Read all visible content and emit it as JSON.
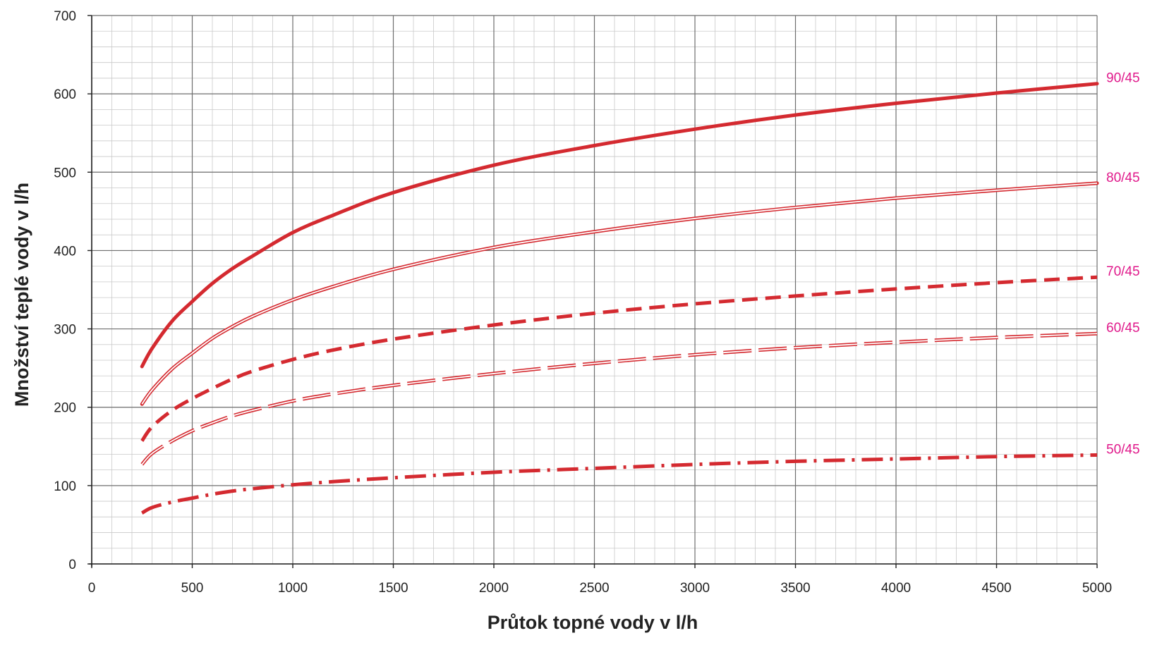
{
  "chart_data": {
    "type": "line",
    "title": "",
    "xlabel": "Průtok topné vody v l/h",
    "ylabel": "Množství teplé vody v l/h",
    "xlim": [
      0,
      5000
    ],
    "ylim": [
      0,
      700
    ],
    "x_ticks": [
      0,
      500,
      1000,
      1500,
      2000,
      2500,
      3000,
      3500,
      4000,
      4500,
      5000
    ],
    "y_ticks": [
      0,
      100,
      200,
      300,
      400,
      500,
      600,
      700
    ],
    "grid": true,
    "label_color": "#e0198b",
    "line_color": "#d42a30",
    "x": [
      250,
      300,
      400,
      500,
      600,
      700,
      800,
      1000,
      1200,
      1500,
      2000,
      2500,
      3000,
      3500,
      4000,
      4500,
      5000
    ],
    "series": [
      {
        "name": "90/45",
        "style": "thick-solid",
        "values": [
          252,
          275,
          310,
          335,
          358,
          377,
          393,
          423,
          445,
          474,
          509,
          534,
          555,
          573,
          588,
          601,
          613
        ]
      },
      {
        "name": "80/45",
        "style": "double-line",
        "values": [
          204,
          222,
          249,
          269,
          288,
          303,
          316,
          337,
          354,
          376,
          404,
          424,
          441,
          455,
          467,
          477,
          486
        ]
      },
      {
        "name": "70/45",
        "style": "thick-dashed",
        "values": [
          157,
          175,
          196,
          211,
          224,
          236,
          246,
          261,
          273,
          287,
          305,
          320,
          332,
          342,
          351,
          359,
          366
        ]
      },
      {
        "name": "60/45",
        "style": "double-dashed",
        "values": [
          127,
          141,
          157,
          170,
          180,
          189,
          196,
          208,
          217,
          228,
          243,
          256,
          267,
          276,
          283,
          289,
          294
        ]
      },
      {
        "name": "50/45",
        "style": "dash-dot",
        "values": [
          65,
          72,
          79,
          84,
          89,
          93,
          96,
          101,
          105,
          110,
          117,
          122,
          127,
          131,
          134,
          137,
          139
        ]
      }
    ]
  }
}
